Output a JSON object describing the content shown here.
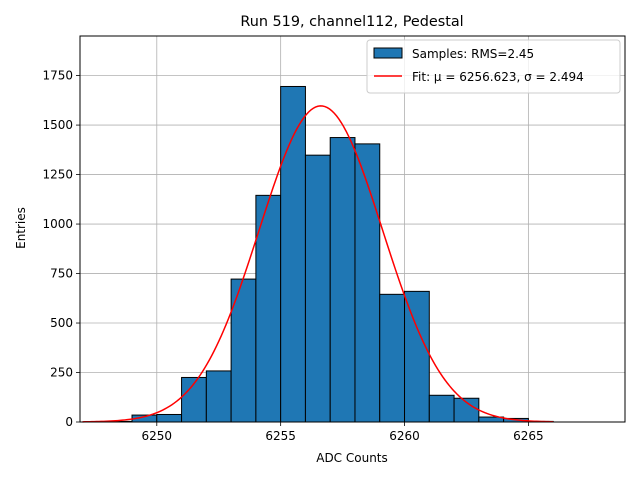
{
  "chart_data": {
    "type": "bar",
    "title": "Run 519, channel112, Pedestal",
    "xlabel": "ADC Counts",
    "ylabel": "Entries",
    "xlim": [
      6246.9,
      6268.9
    ],
    "ylim": [
      0,
      1950
    ],
    "xticks": [
      6250,
      6255,
      6260,
      6265
    ],
    "yticks": [
      0,
      250,
      500,
      750,
      1000,
      1250,
      1500,
      1750
    ],
    "grid": true,
    "legend_position": "top-right",
    "histogram": {
      "name": "Samples: RMS=2.45",
      "color": "#1f77b4",
      "edge_color": "#000000",
      "bin_width": 1,
      "bins": [
        {
          "left": 6248,
          "count": 3
        },
        {
          "left": 6249,
          "count": 35
        },
        {
          "left": 6250,
          "count": 38
        },
        {
          "left": 6251,
          "count": 225
        },
        {
          "left": 6252,
          "count": 258
        },
        {
          "left": 6253,
          "count": 722
        },
        {
          "left": 6254,
          "count": 1145
        },
        {
          "left": 6255,
          "count": 1695
        },
        {
          "left": 6256,
          "count": 1348
        },
        {
          "left": 6257,
          "count": 1437
        },
        {
          "left": 6258,
          "count": 1405
        },
        {
          "left": 6259,
          "count": 645
        },
        {
          "left": 6260,
          "count": 660
        },
        {
          "left": 6261,
          "count": 135
        },
        {
          "left": 6262,
          "count": 120
        },
        {
          "left": 6263,
          "count": 25
        },
        {
          "left": 6264,
          "count": 18
        },
        {
          "left": 6265,
          "count": 3
        }
      ]
    },
    "fit": {
      "name": "Fit: μ = 6256.623, σ = 2.494",
      "color": "#ff0000",
      "mu": 6256.623,
      "sigma": 2.494,
      "amplitude": 1597,
      "x_range": [
        6247,
        6266
      ]
    }
  }
}
